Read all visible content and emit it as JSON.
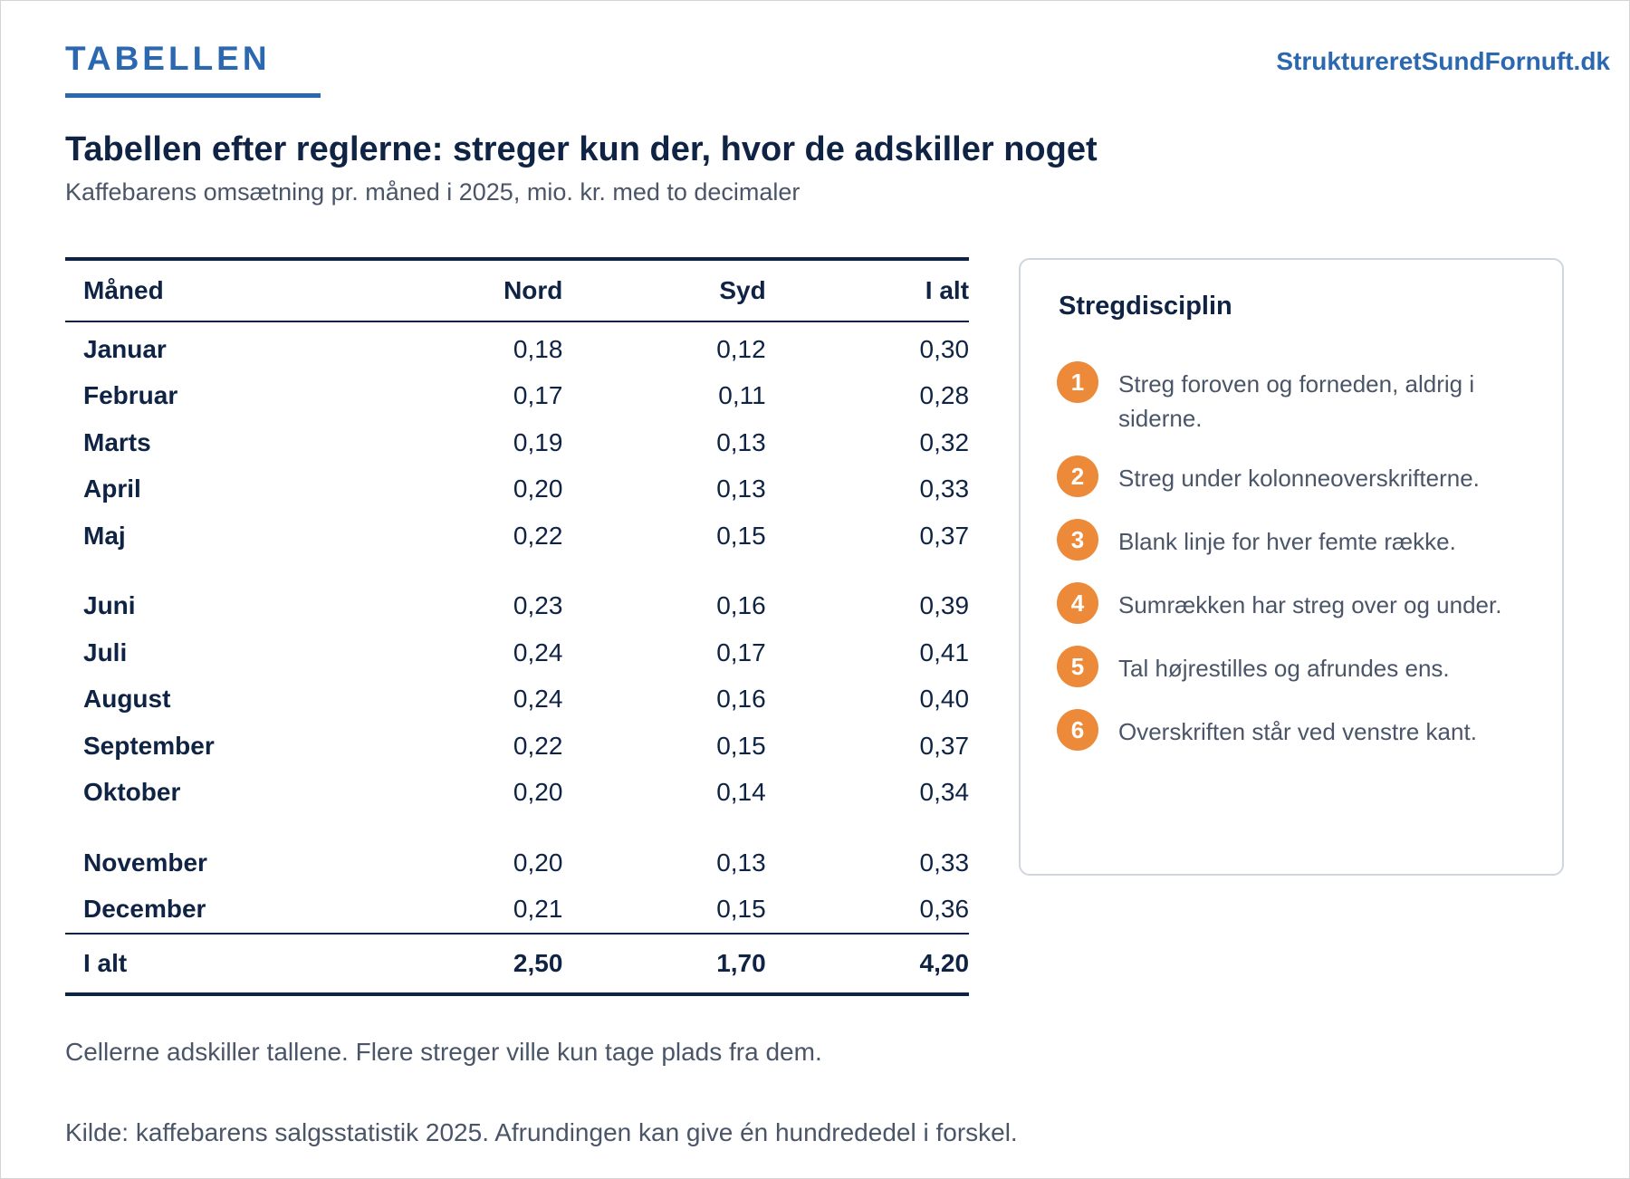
{
  "header": {
    "brand": "TABELLEN",
    "site": "StruktureretSundFornuft.dk"
  },
  "title": "Tabellen efter reglerne: streger kun der, hvor de adskiller noget",
  "subtitle": "Kaffebarens omsætning pr. måned i 2025, mio. kr. med to decimaler",
  "table": {
    "columns": [
      "Måned",
      "Nord",
      "Syd",
      "I alt"
    ],
    "groups": [
      [
        [
          "Januar",
          "0,18",
          "0,12",
          "0,30"
        ],
        [
          "Februar",
          "0,17",
          "0,11",
          "0,28"
        ],
        [
          "Marts",
          "0,19",
          "0,13",
          "0,32"
        ],
        [
          "April",
          "0,20",
          "0,13",
          "0,33"
        ],
        [
          "Maj",
          "0,22",
          "0,15",
          "0,37"
        ]
      ],
      [
        [
          "Juni",
          "0,23",
          "0,16",
          "0,39"
        ],
        [
          "Juli",
          "0,24",
          "0,17",
          "0,41"
        ],
        [
          "August",
          "0,24",
          "0,16",
          "0,40"
        ],
        [
          "September",
          "0,22",
          "0,15",
          "0,37"
        ],
        [
          "Oktober",
          "0,20",
          "0,14",
          "0,34"
        ]
      ],
      [
        [
          "November",
          "0,20",
          "0,13",
          "0,33"
        ],
        [
          "December",
          "0,21",
          "0,15",
          "0,36"
        ]
      ]
    ],
    "total": [
      "I alt",
      "2,50",
      "1,70",
      "4,20"
    ]
  },
  "panel": {
    "title": "Stregdisciplin",
    "rules": [
      {
        "num": "1",
        "text": "Streg foroven og forneden, aldrig i siderne."
      },
      {
        "num": "2",
        "text": "Streg under kolonneoverskrifterne."
      },
      {
        "num": "3",
        "text": "Blank linje for hver femte række."
      },
      {
        "num": "4",
        "text": "Sumrækken har streg over og under."
      },
      {
        "num": "5",
        "text": "Tal højrestilles og afrundes ens."
      },
      {
        "num": "6",
        "text": "Overskriften står ved venstre kant."
      }
    ]
  },
  "note": "Cellerne adskiller tallene. Flere streger ville kun tage plads fra dem.",
  "source": "Kilde: kaffebarens salgsstatistik 2025. Afrundingen kan give én hundrededel i forskel.",
  "colors": {
    "accent": "#2c68b0",
    "ink": "#0f2344",
    "muted": "#4a5568",
    "badge": "#ed8a3a"
  }
}
